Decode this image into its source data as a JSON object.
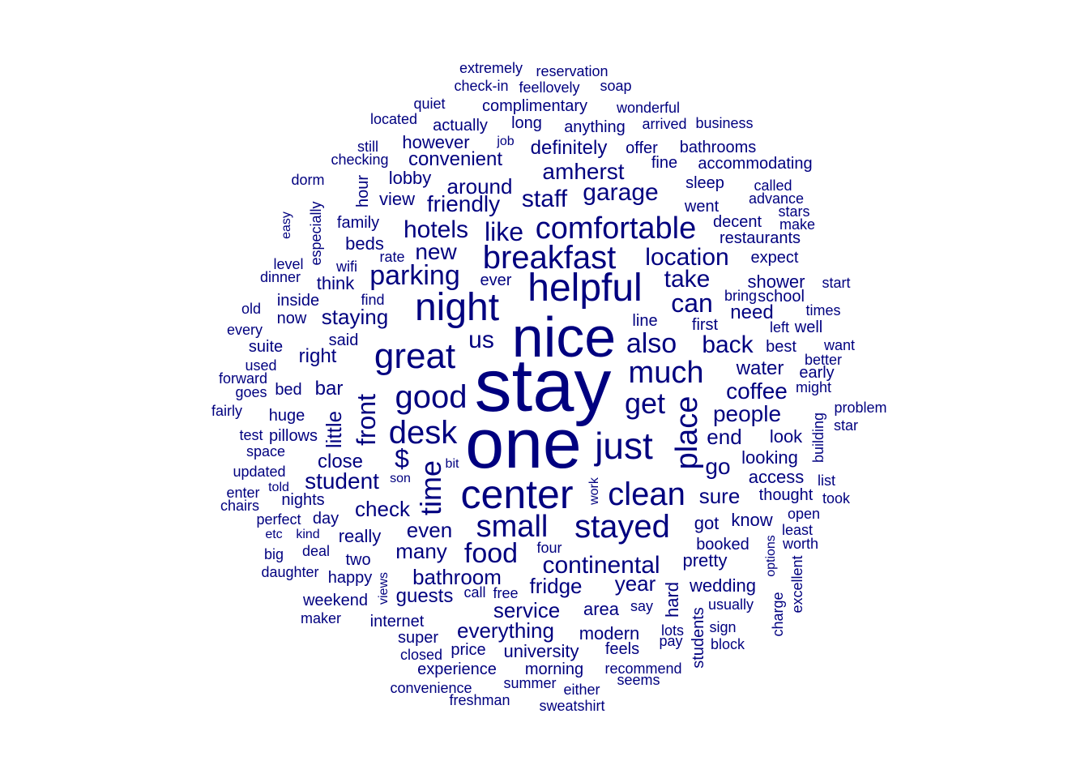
{
  "color": "#00007f",
  "words": [
    "stay",
    "one",
    "nice",
    "center",
    "helpful",
    "night",
    "great",
    "just",
    "breakfast",
    "comfortable",
    "desk",
    "good",
    "clean",
    "stayed",
    "small",
    "much",
    "get",
    "also",
    "food",
    "parking",
    "place",
    "time",
    "location",
    "hotels",
    "garage",
    "staff",
    "like",
    "amherst",
    "continental",
    "friendly",
    "front",
    "can",
    "back",
    "take",
    "us",
    "student",
    "new",
    "around",
    "check",
    "coffee",
    "people",
    "end",
    "go",
    "even",
    "many",
    "bathroom",
    "fridge",
    "year",
    "service",
    "everything",
    "staying",
    "$",
    "little",
    "convenient",
    "definitely",
    "close",
    "really",
    "guests",
    "water",
    "sure",
    "need",
    "right",
    "shower",
    "look",
    "looking",
    "access",
    "wedding",
    "got",
    "know",
    "pretty",
    "lobby",
    "view",
    "however",
    "complimentary",
    "long",
    "anything",
    "actually",
    "bathrooms",
    "accommodating",
    "sleep",
    "went",
    "decent",
    "restaurants",
    "expect",
    "first",
    "best",
    "bar",
    "bed",
    "said",
    "beds",
    "think",
    "suite",
    "inside",
    "now",
    "family",
    "university",
    "modern",
    "morning",
    "experience",
    "price",
    "feels",
    "booked",
    "two",
    "happy",
    "weekend",
    "internet",
    "super",
    "area",
    "thought",
    "hard",
    "students",
    "ever",
    "line",
    "huge",
    "pillows",
    "nights",
    "day",
    "hour",
    "especially",
    "fine",
    "offer",
    "extremely",
    "reservation",
    "check-in",
    "feellovely",
    "soap",
    "wonderful",
    "quiet",
    "located",
    "arrived",
    "business",
    "still",
    "job",
    "checking",
    "dorm",
    "called",
    "advance",
    "stars",
    "make",
    "easy",
    "level",
    "dinner",
    "rate",
    "wifi",
    "find",
    "bring",
    "school",
    "start",
    "old",
    "times",
    "every",
    "left",
    "well",
    "want",
    "used",
    "better",
    "early",
    "forward",
    "goes",
    "might",
    "fairly",
    "problem",
    "star",
    "test",
    "space",
    "updated",
    "enter",
    "told",
    "chairs",
    "perfect",
    "etc",
    "kind",
    "big",
    "deal",
    "daughter",
    "maker",
    "building",
    "list",
    "took",
    "open",
    "least",
    "worth",
    "options",
    "excellent",
    "charge",
    "views",
    "call",
    "free",
    "say",
    "lots",
    "pay",
    "sign",
    "block",
    "usually",
    "recommend",
    "seems",
    "closed",
    "convenience",
    "freshman",
    "summer",
    "either",
    "sweatshirt",
    "four",
    "work",
    "bit",
    "son"
  ]
}
